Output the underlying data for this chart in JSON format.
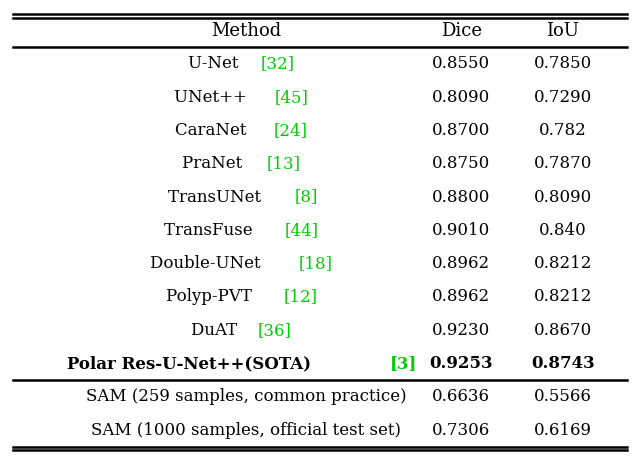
{
  "headers": [
    "Method",
    "Dice",
    "IoU"
  ],
  "rows_main": [
    {
      "method_parts": [
        {
          "text": "U-Net ",
          "color": "black"
        },
        {
          "text": "[32]",
          "color": "#00cc00"
        }
      ],
      "dice": "0.8550",
      "iou": "0.7850",
      "bold": false
    },
    {
      "method_parts": [
        {
          "text": "UNet++ ",
          "color": "black"
        },
        {
          "text": "[45]",
          "color": "#00cc00"
        }
      ],
      "dice": "0.8090",
      "iou": "0.7290",
      "bold": false
    },
    {
      "method_parts": [
        {
          "text": "CaraNet ",
          "color": "black"
        },
        {
          "text": "[24]",
          "color": "#00cc00"
        }
      ],
      "dice": "0.8700",
      "iou": "0.782",
      "bold": false
    },
    {
      "method_parts": [
        {
          "text": "PraNet ",
          "color": "black"
        },
        {
          "text": "[13]",
          "color": "#00cc00"
        }
      ],
      "dice": "0.8750",
      "iou": "0.7870",
      "bold": false
    },
    {
      "method_parts": [
        {
          "text": "TransUNet ",
          "color": "black"
        },
        {
          "text": "[8]",
          "color": "#00cc00"
        }
      ],
      "dice": "0.8800",
      "iou": "0.8090",
      "bold": false
    },
    {
      "method_parts": [
        {
          "text": "TransFuse ",
          "color": "black"
        },
        {
          "text": "[44]",
          "color": "#00cc00"
        }
      ],
      "dice": "0.9010",
      "iou": "0.840",
      "bold": false
    },
    {
      "method_parts": [
        {
          "text": "Double-UNet ",
          "color": "black"
        },
        {
          "text": "[18]",
          "color": "#00cc00"
        }
      ],
      "dice": "0.8962",
      "iou": "0.8212",
      "bold": false
    },
    {
      "method_parts": [
        {
          "text": "Polyp-PVT ",
          "color": "black"
        },
        {
          "text": "[12]",
          "color": "#00cc00"
        }
      ],
      "dice": "0.8962",
      "iou": "0.8212",
      "bold": false
    },
    {
      "method_parts": [
        {
          "text": "DuAT ",
          "color": "black"
        },
        {
          "text": "[36]",
          "color": "#00cc00"
        }
      ],
      "dice": "0.9230",
      "iou": "0.8670",
      "bold": false
    },
    {
      "method_parts": [
        {
          "text": "Polar Res-U-Net++(SOTA) ",
          "color": "black"
        },
        {
          "text": "[3]",
          "color": "#00cc00"
        }
      ],
      "dice": "0.9253",
      "iou": "0.8743",
      "bold": true
    }
  ],
  "rows_sam": [
    {
      "method": "SAM (259 samples, common practice)",
      "dice": "0.6636",
      "iou": "0.5566"
    },
    {
      "method": "SAM (1000 samples, official test set)",
      "dice": "0.7306",
      "iou": "0.6169"
    }
  ],
  "background_color": "#ffffff",
  "text_color": "#000000",
  "green_color": "#00cc00",
  "header_fontsize": 13,
  "body_fontsize": 12,
  "fig_width": 6.4,
  "fig_height": 4.66
}
